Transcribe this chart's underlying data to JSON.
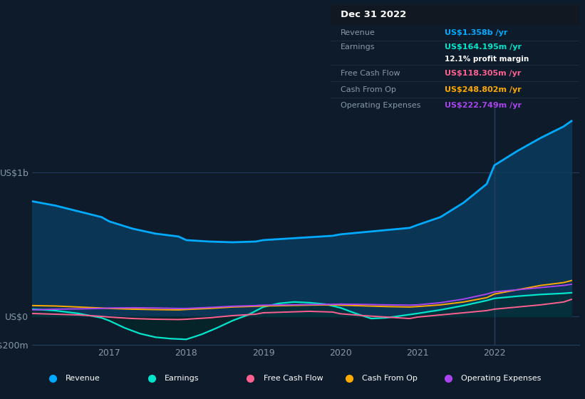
{
  "bg_color": "#0d1b2a",
  "plot_bg_color": "#0d1b2a",
  "grid_color": "#263f5e",
  "text_color": "#8899aa",
  "white": "#ffffff",
  "revenue_color": "#00aaff",
  "earnings_color": "#00e5cc",
  "fcf_color": "#ff6090",
  "cashfromop_color": "#ffaa00",
  "opex_color": "#aa44ee",
  "revenue": {
    "x": [
      2016.0,
      2016.3,
      2016.6,
      2016.9,
      2017.0,
      2017.3,
      2017.6,
      2017.9,
      2018.0,
      2018.3,
      2018.6,
      2018.9,
      2019.0,
      2019.3,
      2019.6,
      2019.9,
      2020.0,
      2020.3,
      2020.6,
      2020.9,
      2021.0,
      2021.3,
      2021.6,
      2021.9,
      2022.0,
      2022.3,
      2022.6,
      2022.9,
      2023.0
    ],
    "y": [
      800,
      770,
      730,
      690,
      660,
      610,
      575,
      555,
      530,
      520,
      515,
      520,
      530,
      540,
      550,
      560,
      570,
      585,
      600,
      615,
      635,
      690,
      790,
      920,
      1050,
      1150,
      1240,
      1320,
      1358
    ]
  },
  "earnings": {
    "x": [
      2016.0,
      2016.3,
      2016.6,
      2016.9,
      2017.0,
      2017.2,
      2017.4,
      2017.6,
      2017.8,
      2018.0,
      2018.2,
      2018.4,
      2018.6,
      2018.8,
      2019.0,
      2019.2,
      2019.4,
      2019.6,
      2019.8,
      2020.0,
      2020.2,
      2020.4,
      2020.6,
      2020.8,
      2021.0,
      2021.3,
      2021.6,
      2021.9,
      2022.0,
      2022.3,
      2022.6,
      2022.9,
      2023.0
    ],
    "y": [
      50,
      40,
      20,
      -10,
      -30,
      -80,
      -120,
      -145,
      -155,
      -160,
      -125,
      -80,
      -30,
      10,
      65,
      90,
      100,
      95,
      85,
      60,
      20,
      -15,
      -10,
      5,
      20,
      45,
      75,
      110,
      125,
      140,
      152,
      160,
      164
    ]
  },
  "fcf": {
    "x": [
      2016.0,
      2016.3,
      2016.6,
      2016.9,
      2017.0,
      2017.3,
      2017.6,
      2017.9,
      2018.0,
      2018.3,
      2018.6,
      2018.9,
      2019.0,
      2019.3,
      2019.6,
      2019.9,
      2020.0,
      2020.3,
      2020.6,
      2020.9,
      2021.0,
      2021.3,
      2021.6,
      2021.9,
      2022.0,
      2022.3,
      2022.6,
      2022.9,
      2023.0
    ],
    "y": [
      20,
      15,
      10,
      0,
      -5,
      -15,
      -20,
      -22,
      -20,
      -10,
      5,
      15,
      25,
      30,
      35,
      30,
      18,
      5,
      -5,
      -15,
      -5,
      10,
      25,
      40,
      50,
      65,
      80,
      100,
      118
    ]
  },
  "cashfromop": {
    "x": [
      2016.0,
      2016.3,
      2016.6,
      2016.9,
      2017.0,
      2017.3,
      2017.6,
      2017.9,
      2018.0,
      2018.3,
      2018.6,
      2018.9,
      2019.0,
      2019.3,
      2019.6,
      2019.9,
      2020.0,
      2020.3,
      2020.6,
      2020.9,
      2021.0,
      2021.3,
      2021.6,
      2021.9,
      2022.0,
      2022.3,
      2022.6,
      2022.9,
      2023.0
    ],
    "y": [
      75,
      72,
      65,
      58,
      55,
      50,
      47,
      45,
      48,
      55,
      65,
      70,
      72,
      75,
      78,
      80,
      78,
      73,
      68,
      65,
      68,
      80,
      100,
      130,
      155,
      185,
      215,
      235,
      249
    ]
  },
  "opex": {
    "x": [
      2016.0,
      2016.3,
      2016.6,
      2016.9,
      2017.0,
      2017.3,
      2017.6,
      2017.9,
      2018.0,
      2018.3,
      2018.6,
      2018.9,
      2019.0,
      2019.3,
      2019.6,
      2019.9,
      2020.0,
      2020.3,
      2020.6,
      2020.9,
      2021.0,
      2021.3,
      2021.6,
      2021.9,
      2022.0,
      2022.3,
      2022.6,
      2022.9,
      2023.0
    ],
    "y": [
      45,
      50,
      52,
      55,
      58,
      60,
      58,
      55,
      55,
      62,
      70,
      75,
      78,
      80,
      82,
      84,
      85,
      83,
      80,
      78,
      80,
      95,
      120,
      155,
      170,
      185,
      200,
      215,
      223
    ]
  },
  "ylim": [
    -200,
    1450
  ],
  "xlim": [
    2016.0,
    2023.1
  ],
  "x_ticks": [
    2017,
    2018,
    2019,
    2020,
    2021,
    2022
  ],
  "ytick_positions": [
    0,
    1000,
    -200
  ],
  "ytick_labels": [
    "US$0",
    "US$1b",
    "-US$200m"
  ],
  "vline_x": 2022.0,
  "vline_color": "#2a4060",
  "infobox": {
    "title": "Dec 31 2022",
    "rows": [
      {
        "label": "Revenue",
        "value": "US$1.358b",
        "suffix": " /yr",
        "value_color": "#00aaff",
        "extra": null
      },
      {
        "label": "Earnings",
        "value": "US$164.195m",
        "suffix": " /yr",
        "value_color": "#00e5cc",
        "extra": "12.1% profit margin"
      },
      {
        "label": "Free Cash Flow",
        "value": "US$118.305m",
        "suffix": " /yr",
        "value_color": "#ff6090",
        "extra": null
      },
      {
        "label": "Cash From Op",
        "value": "US$248.802m",
        "suffix": " /yr",
        "value_color": "#ffaa00",
        "extra": null
      },
      {
        "label": "Operating Expenses",
        "value": "US$222.749m",
        "suffix": " /yr",
        "value_color": "#aa44ee",
        "extra": null
      }
    ]
  },
  "legend": [
    {
      "label": "Revenue",
      "color": "#00aaff"
    },
    {
      "label": "Earnings",
      "color": "#00e5cc"
    },
    {
      "label": "Free Cash Flow",
      "color": "#ff6090"
    },
    {
      "label": "Cash From Op",
      "color": "#ffaa00"
    },
    {
      "label": "Operating Expenses",
      "color": "#aa44ee"
    }
  ]
}
